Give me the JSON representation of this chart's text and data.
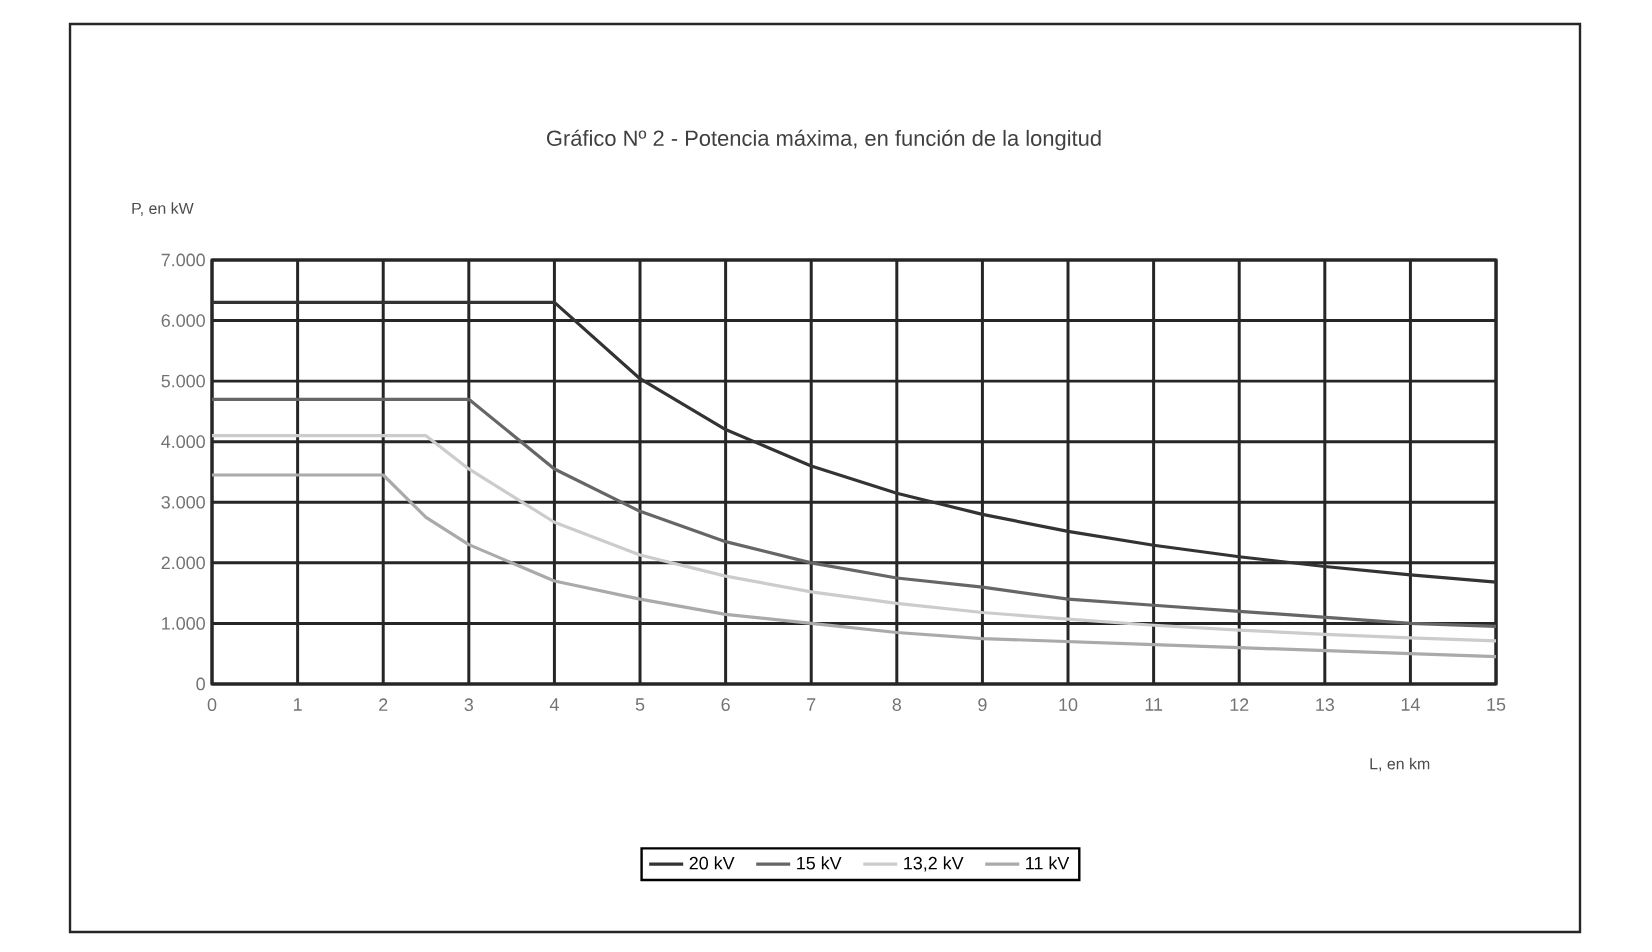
{
  "chart_data": {
    "type": "line",
    "title": "Gráfico Nº 2 - Potencia máxima, en función de la longitud",
    "xlabel": "L, en km",
    "ylabel": "P, en kW",
    "x": [
      0,
      1,
      2,
      2.5,
      3,
      4,
      5,
      6,
      7,
      8,
      9,
      10,
      11,
      12,
      13,
      14,
      15
    ],
    "series": [
      {
        "name": "20 kV",
        "color": "#333333",
        "values": [
          6300,
          6300,
          6300,
          6300,
          6300,
          6300,
          5040,
          4200,
          3600,
          3150,
          2800,
          2520,
          2290,
          2100,
          1940,
          1800,
          1680
        ]
      },
      {
        "name": "15 kV",
        "color": "#666666",
        "values": [
          4700,
          4700,
          4700,
          4700,
          4700,
          3550,
          2850,
          2350,
          2000,
          1750,
          1600,
          1400,
          1300,
          1200,
          1100,
          1000,
          950
        ]
      },
      {
        "name": "13,2 kV",
        "color": "#cccccc",
        "values": [
          4100,
          4100,
          4100,
          4100,
          3550,
          2670,
          2130,
          1780,
          1520,
          1330,
          1180,
          1070,
          970,
          890,
          820,
          760,
          710
        ]
      },
      {
        "name": "11 kV",
        "color": "#aaaaaa",
        "values": [
          3450,
          3450,
          3450,
          2750,
          2300,
          1700,
          1400,
          1150,
          1000,
          850,
          750,
          700,
          650,
          600,
          550,
          500,
          450
        ]
      }
    ],
    "xlim": [
      0,
      15
    ],
    "xticks": [
      0,
      1,
      2,
      3,
      4,
      5,
      6,
      7,
      8,
      9,
      10,
      11,
      12,
      13,
      14,
      15
    ],
    "ylim": [
      0,
      7000
    ],
    "yticks": [
      {
        "value": 0,
        "label": "0"
      },
      {
        "value": 1000,
        "label": "1.000"
      },
      {
        "value": 2000,
        "label": "2.000"
      },
      {
        "value": 3000,
        "label": "3.000"
      },
      {
        "value": 4000,
        "label": "4.000"
      },
      {
        "value": 5000,
        "label": "5.000"
      },
      {
        "value": 6000,
        "label": "6.000"
      },
      {
        "value": 7000,
        "label": "7.000"
      }
    ],
    "grid": true,
    "legend": "bottom",
    "line_style": "solid"
  }
}
